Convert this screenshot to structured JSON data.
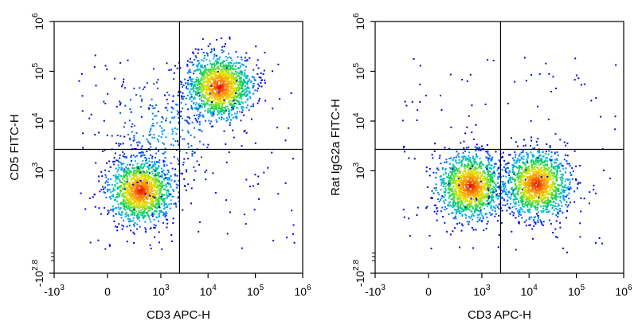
{
  "chart_data": [
    {
      "type": "scatter",
      "subtype": "flow-cytometry-density-dot-plot",
      "xlabel": "CD3 APC-H",
      "ylabel": "CD5 FITC-H",
      "x_ticks": [
        {
          "label": "-10",
          "exp": "3",
          "value": -1000
        },
        {
          "label": "0",
          "exp": "",
          "value": 0
        },
        {
          "label": "10",
          "exp": "3",
          "value": 1000
        },
        {
          "label": "10",
          "exp": "4",
          "value": 10000
        },
        {
          "label": "10",
          "exp": "5",
          "value": 100000
        },
        {
          "label": "10",
          "exp": "6",
          "value": 1000000
        }
      ],
      "y_ticks": [
        {
          "label": "-10",
          "exp": "2.8",
          "value": -631
        },
        {
          "label": "10",
          "exp": "3",
          "value": 1000
        },
        {
          "label": "10",
          "exp": "4",
          "value": 10000
        },
        {
          "label": "10",
          "exp": "5",
          "value": 100000
        },
        {
          "label": "10",
          "exp": "6",
          "value": 1000000
        }
      ],
      "quadrant_gate": {
        "x": 2500,
        "y": 2700
      },
      "populations": [
        {
          "name": "CD3- CD5- cells",
          "x_center": 350,
          "y_center": 400,
          "relative_density": "high"
        },
        {
          "name": "CD3+ CD5+ T cells",
          "x_center": 17000,
          "y_center": 50000,
          "relative_density": "high"
        },
        {
          "name": "CD3low CD5+ cells",
          "x_center": 1200,
          "y_center": 8000,
          "relative_density": "low"
        }
      ],
      "quadrant_percentages": null
    },
    {
      "type": "scatter",
      "subtype": "flow-cytometry-density-dot-plot",
      "xlabel": "CD3 APC-H",
      "ylabel": "Rat IgG2a FITC-H",
      "x_ticks": [
        {
          "label": "-10",
          "exp": "3",
          "value": -1000
        },
        {
          "label": "0",
          "exp": "",
          "value": 0
        },
        {
          "label": "10",
          "exp": "3",
          "value": 1000
        },
        {
          "label": "10",
          "exp": "4",
          "value": 10000
        },
        {
          "label": "10",
          "exp": "5",
          "value": 100000
        },
        {
          "label": "10",
          "exp": "6",
          "value": 1000000
        }
      ],
      "y_ticks": [
        {
          "label": "-10",
          "exp": "2.8",
          "value": -631
        },
        {
          "label": "10",
          "exp": "3",
          "value": 1000
        },
        {
          "label": "10",
          "exp": "4",
          "value": 10000
        },
        {
          "label": "10",
          "exp": "5",
          "value": 100000
        },
        {
          "label": "10",
          "exp": "6",
          "value": 1000000
        }
      ],
      "quadrant_gate": {
        "x": 2500,
        "y": 2700
      },
      "populations": [
        {
          "name": "CD3- isotype",
          "x_center": 550,
          "y_center": 500,
          "relative_density": "high"
        },
        {
          "name": "CD3+ isotype",
          "x_center": 14000,
          "y_center": 550,
          "relative_density": "high"
        }
      ],
      "quadrant_percentages": null
    }
  ]
}
